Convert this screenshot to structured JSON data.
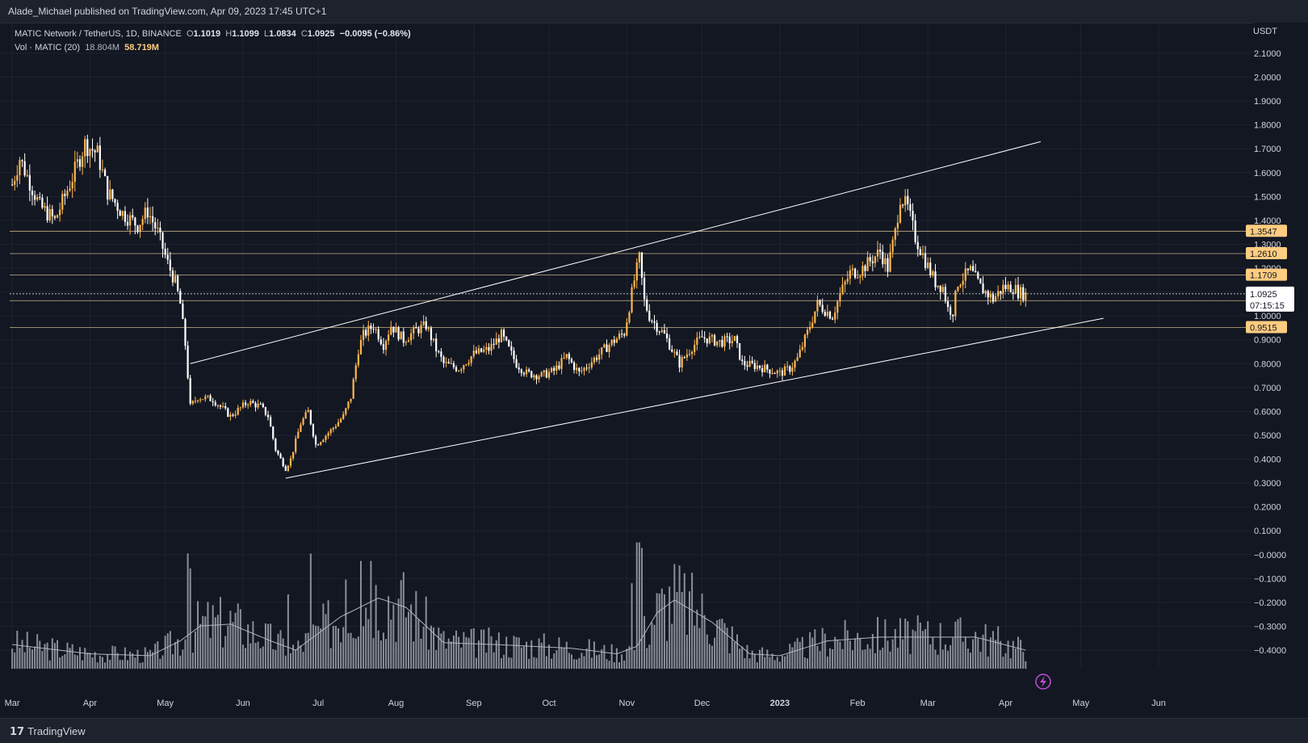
{
  "header": {
    "published": "Alade_Michael published on TradingView.com, Apr 09, 2023 17:45 UTC+1"
  },
  "legend": {
    "symbol": "MATIC Network / TetherUS, 1D, BINANCE",
    "o_label": "O",
    "o_value": "1.1019",
    "h_label": "H",
    "h_value": "1.1099",
    "l_label": "L",
    "l_value": "1.0834",
    "c_label": "C",
    "c_value": "1.0925",
    "change": "−0.0095 (−0.86%)",
    "vol_label": "Vol · MATIC (20)",
    "vol_value": "18.804M",
    "vol_ma": "58.719M"
  },
  "footer": {
    "brand": "TradingView",
    "brand_mark": "17"
  },
  "chart_data": {
    "type": "candlestick",
    "currency": "USDT",
    "y_ticks": [
      "2.1000",
      "2.0000",
      "1.9000",
      "1.8000",
      "1.7000",
      "1.6000",
      "1.5000",
      "1.4000",
      "1.3000",
      "1.2000",
      "1.1000",
      "1.0000",
      "0.9000",
      "0.8000",
      "0.7000",
      "0.6000",
      "0.5000",
      "0.4000",
      "0.3000",
      "0.2000",
      "0.1000",
      "−0.0000",
      "−0.1000",
      "−0.2000",
      "−0.3000",
      "−0.4000"
    ],
    "ylim": [
      -0.4,
      2.1
    ],
    "x_ticks": [
      "Mar",
      "Apr",
      "May",
      "Jun",
      "Jul",
      "Aug",
      "Sep",
      "Oct",
      "Nov",
      "Dec",
      "2023",
      "Feb",
      "Mar",
      "Apr",
      "May",
      "Jun"
    ],
    "x_tick_dates": [
      "2022-03-01",
      "2022-04-01",
      "2022-05-01",
      "2022-06-01",
      "2022-07-01",
      "2022-08-01",
      "2022-09-01",
      "2022-10-01",
      "2022-11-01",
      "2022-12-01",
      "2023-01-01",
      "2023-02-01",
      "2023-03-01",
      "2023-04-01",
      "2023-05-01",
      "2023-06-01"
    ],
    "anchor_prices": [
      [
        "2022-03-01",
        1.55
      ],
      [
        "2022-03-04",
        1.66
      ],
      [
        "2022-03-12",
        1.46
      ],
      [
        "2022-03-18",
        1.4
      ],
      [
        "2022-03-25",
        1.58
      ],
      [
        "2022-03-30",
        1.72
      ],
      [
        "2022-04-04",
        1.68
      ],
      [
        "2022-04-08",
        1.52
      ],
      [
        "2022-04-14",
        1.43
      ],
      [
        "2022-04-20",
        1.38
      ],
      [
        "2022-04-24",
        1.44
      ],
      [
        "2022-04-28",
        1.35
      ],
      [
        "2022-05-02",
        1.22
      ],
      [
        "2022-05-05",
        1.14
      ],
      [
        "2022-05-07",
        1.05
      ],
      [
        "2022-05-09",
        0.88
      ],
      [
        "2022-05-11",
        0.62
      ],
      [
        "2022-05-14",
        0.66
      ],
      [
        "2022-05-20",
        0.65
      ],
      [
        "2022-05-27",
        0.58
      ],
      [
        "2022-06-03",
        0.64
      ],
      [
        "2022-06-08",
        0.62
      ],
      [
        "2022-06-11",
        0.58
      ],
      [
        "2022-06-14",
        0.44
      ],
      [
        "2022-06-18",
        0.36
      ],
      [
        "2022-06-20",
        0.4
      ],
      [
        "2022-06-24",
        0.55
      ],
      [
        "2022-06-27",
        0.6
      ],
      [
        "2022-06-30",
        0.46
      ],
      [
        "2022-07-06",
        0.52
      ],
      [
        "2022-07-11",
        0.58
      ],
      [
        "2022-07-14",
        0.66
      ],
      [
        "2022-07-17",
        0.86
      ],
      [
        "2022-07-19",
        0.92
      ],
      [
        "2022-07-23",
        0.96
      ],
      [
        "2022-07-27",
        0.88
      ],
      [
        "2022-07-30",
        0.96
      ],
      [
        "2022-08-04",
        0.9
      ],
      [
        "2022-08-09",
        0.94
      ],
      [
        "2022-08-13",
        0.96
      ],
      [
        "2022-08-17",
        0.86
      ],
      [
        "2022-08-20",
        0.8
      ],
      [
        "2022-08-26",
        0.78
      ],
      [
        "2022-09-01",
        0.84
      ],
      [
        "2022-09-07",
        0.86
      ],
      [
        "2022-09-12",
        0.92
      ],
      [
        "2022-09-18",
        0.8
      ],
      [
        "2022-09-22",
        0.76
      ],
      [
        "2022-09-28",
        0.75
      ],
      [
        "2022-10-03",
        0.77
      ],
      [
        "2022-10-08",
        0.83
      ],
      [
        "2022-10-13",
        0.76
      ],
      [
        "2022-10-18",
        0.81
      ],
      [
        "2022-10-25",
        0.88
      ],
      [
        "2022-10-31",
        0.93
      ],
      [
        "2022-11-04",
        1.15
      ],
      [
        "2022-11-06",
        1.24
      ],
      [
        "2022-11-08",
        1.06
      ],
      [
        "2022-11-10",
        1.0
      ],
      [
        "2022-11-12",
        0.97
      ],
      [
        "2022-11-16",
        0.92
      ],
      [
        "2022-11-22",
        0.8
      ],
      [
        "2022-11-27",
        0.87
      ],
      [
        "2022-12-01",
        0.91
      ],
      [
        "2022-12-08",
        0.89
      ],
      [
        "2022-12-14",
        0.9
      ],
      [
        "2022-12-17",
        0.8
      ],
      [
        "2022-12-23",
        0.79
      ],
      [
        "2022-12-29",
        0.77
      ],
      [
        "2023-01-01",
        0.76
      ],
      [
        "2023-01-05",
        0.78
      ],
      [
        "2023-01-08",
        0.82
      ],
      [
        "2023-01-12",
        0.93
      ],
      [
        "2023-01-16",
        1.05
      ],
      [
        "2023-01-22",
        1.0
      ],
      [
        "2023-01-25",
        1.09
      ],
      [
        "2023-01-29",
        1.18
      ],
      [
        "2023-02-02",
        1.19
      ],
      [
        "2023-02-07",
        1.24
      ],
      [
        "2023-02-10",
        1.27
      ],
      [
        "2023-02-13",
        1.2
      ],
      [
        "2023-02-16",
        1.35
      ],
      [
        "2023-02-18",
        1.5
      ],
      [
        "2023-02-21",
        1.45
      ],
      [
        "2023-02-24",
        1.33
      ],
      [
        "2023-02-28",
        1.23
      ],
      [
        "2023-03-04",
        1.14
      ],
      [
        "2023-03-07",
        1.12
      ],
      [
        "2023-03-09",
        1.03
      ],
      [
        "2023-03-11",
        1.02
      ],
      [
        "2023-03-13",
        1.14
      ],
      [
        "2023-03-18",
        1.19
      ],
      [
        "2023-03-22",
        1.12
      ],
      [
        "2023-03-27",
        1.07
      ],
      [
        "2023-03-31",
        1.12
      ],
      [
        "2023-04-04",
        1.12
      ],
      [
        "2023-04-06",
        1.1
      ],
      [
        "2023-04-09",
        1.09
      ]
    ],
    "volume_ma_anchors": [
      [
        "2022-03-01",
        0.13
      ],
      [
        "2022-04-01",
        0.08
      ],
      [
        "2022-04-25",
        0.07
      ],
      [
        "2022-05-07",
        0.15
      ],
      [
        "2022-05-15",
        0.23
      ],
      [
        "2022-05-27",
        0.24
      ],
      [
        "2022-06-12",
        0.15
      ],
      [
        "2022-06-22",
        0.1
      ],
      [
        "2022-07-10",
        0.28
      ],
      [
        "2022-07-25",
        0.38
      ],
      [
        "2022-08-05",
        0.33
      ],
      [
        "2022-08-20",
        0.14
      ],
      [
        "2022-09-10",
        0.13
      ],
      [
        "2022-10-10",
        0.11
      ],
      [
        "2022-10-28",
        0.08
      ],
      [
        "2022-11-05",
        0.12
      ],
      [
        "2022-11-13",
        0.3
      ],
      [
        "2022-11-20",
        0.37
      ],
      [
        "2022-12-05",
        0.25
      ],
      [
        "2022-12-20",
        0.08
      ],
      [
        "2023-01-01",
        0.07
      ],
      [
        "2023-01-20",
        0.15
      ],
      [
        "2023-02-10",
        0.17
      ],
      [
        "2023-02-18",
        0.17
      ],
      [
        "2023-03-05",
        0.17
      ],
      [
        "2023-03-20",
        0.17
      ],
      [
        "2023-04-09",
        0.1
      ]
    ],
    "volume_spike_days": [
      [
        "2022-05-10",
        0.62
      ],
      [
        "2022-05-11",
        0.54
      ],
      [
        "2022-06-19",
        0.4
      ],
      [
        "2022-06-28",
        0.62
      ],
      [
        "2022-07-12",
        0.48
      ],
      [
        "2022-07-18",
        0.58
      ],
      [
        "2022-07-22",
        0.58
      ],
      [
        "2022-11-03",
        0.46
      ],
      [
        "2022-11-05",
        0.68
      ],
      [
        "2022-11-06",
        0.68
      ],
      [
        "2022-11-07",
        0.65
      ]
    ],
    "horizontal_levels": [
      {
        "price": 1.3547,
        "label": "1.3547"
      },
      {
        "price": 1.261,
        "label": "1.2610"
      },
      {
        "price": 1.1709,
        "label": "1.1709"
      },
      {
        "price": 1.0639,
        "label": "1.0639"
      },
      {
        "price": 0.9515,
        "label": "0.9515"
      }
    ],
    "last_price": {
      "price": 1.0925,
      "label": "1.0925",
      "countdown": "07:15:15"
    },
    "channel_upper": [
      [
        "2022-05-11",
        0.8
      ],
      [
        "2023-04-15",
        1.73
      ]
    ],
    "channel_lower": [
      [
        "2022-06-18",
        0.32
      ],
      [
        "2023-05-10",
        0.99
      ]
    ],
    "colors": {
      "up": "#ffb74d",
      "down": "#ffffff",
      "level_label_bg": "#ffcc80",
      "grid": "#1f2330",
      "volume": "#8a8e99"
    }
  }
}
